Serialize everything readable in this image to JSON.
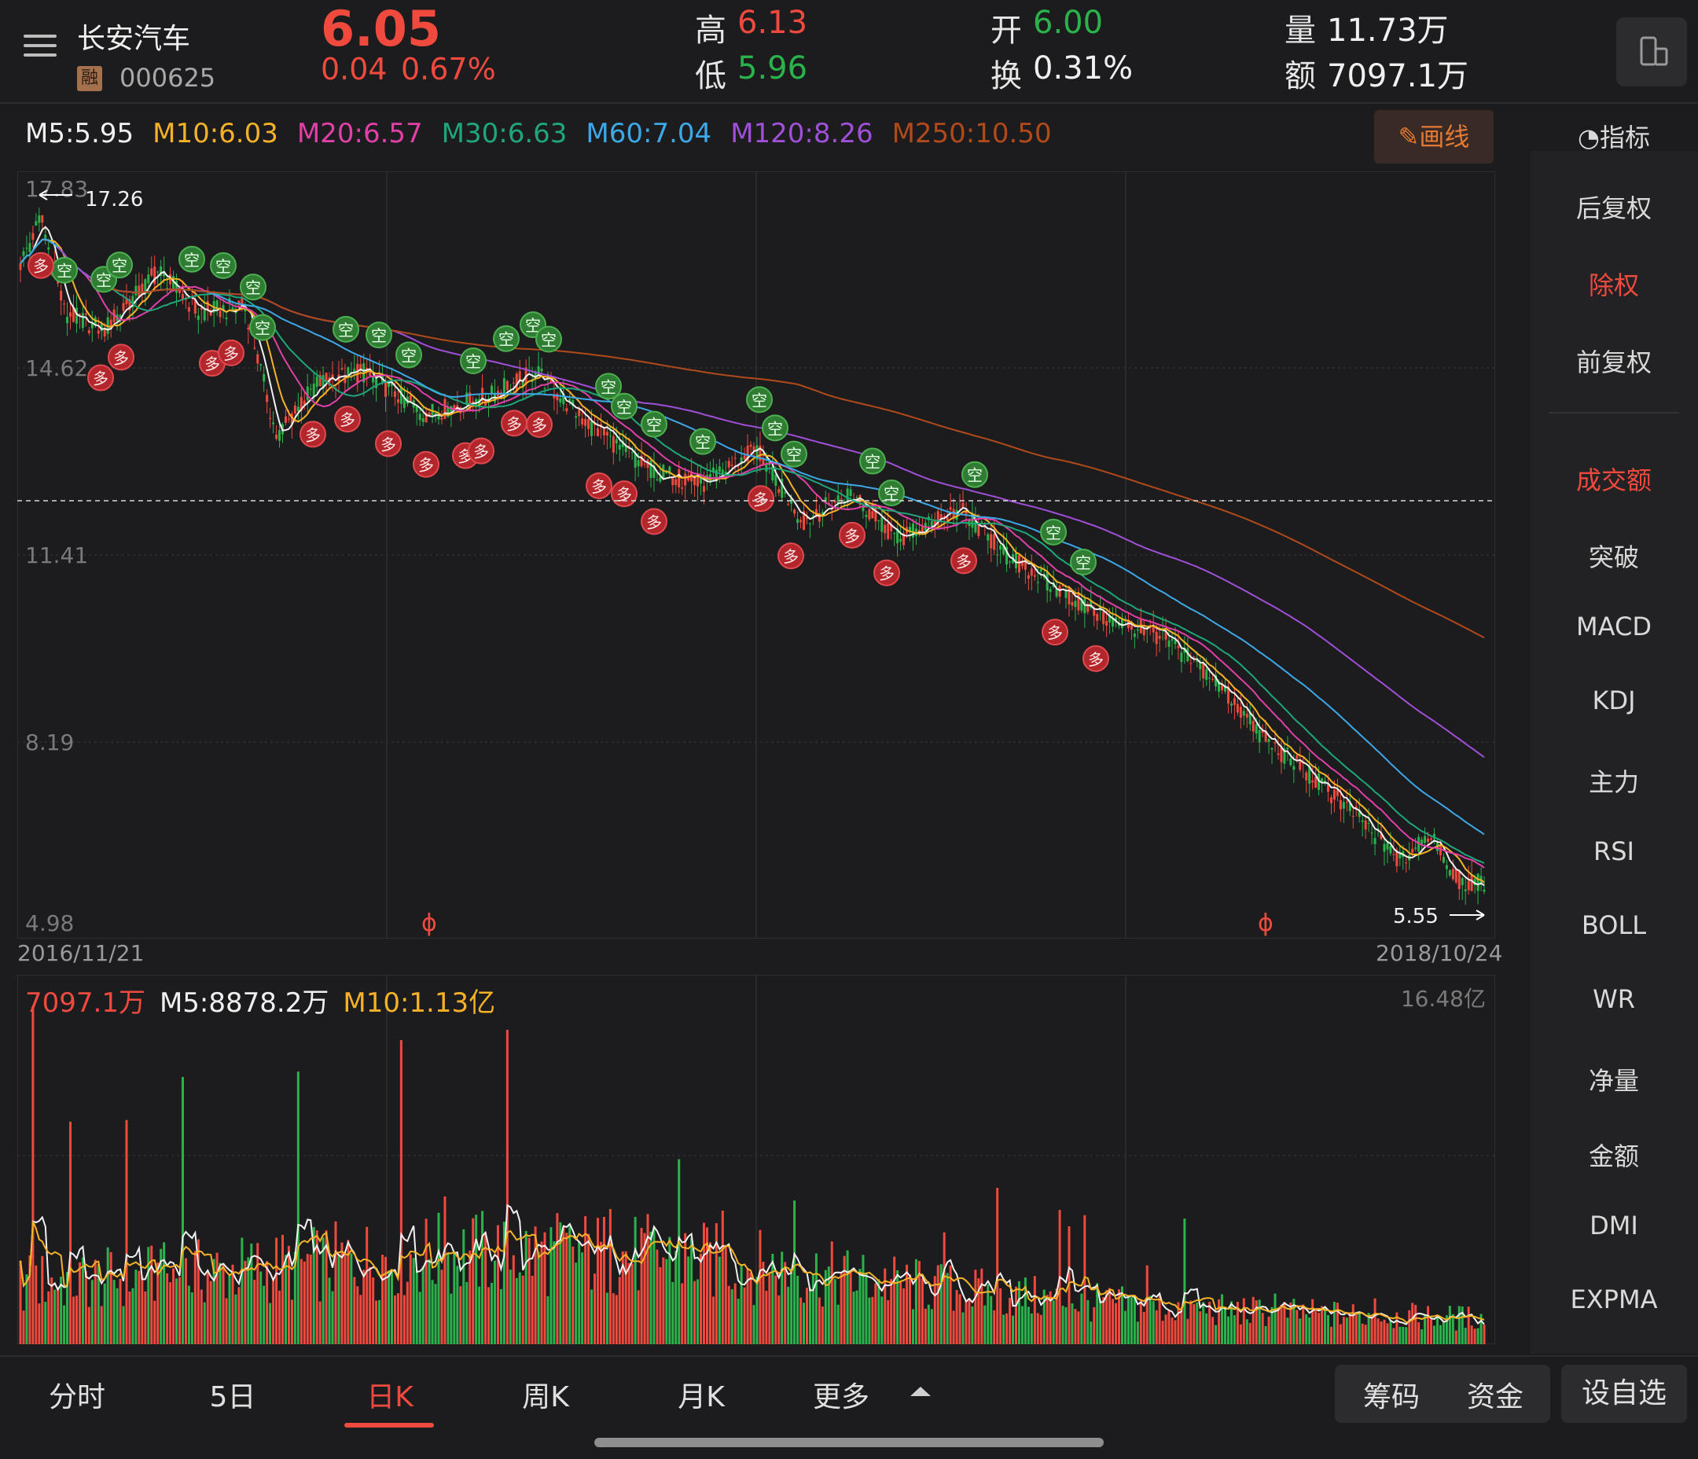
{
  "header": {
    "stock_name": "长安汽车",
    "badge": "融",
    "stock_code": "000625",
    "price": "6.05",
    "change": "0.04",
    "change_pct": "0.67%",
    "high_label": "高",
    "high_value": "6.13",
    "low_label": "低",
    "low_value": "5.96",
    "open_label": "开",
    "open_value": "6.00",
    "turnover_label": "换",
    "turnover_value": "0.31%",
    "volume_label": "量",
    "volume_value": "11.73万",
    "amount_label": "额",
    "amount_value": "7097.1万"
  },
  "ma_legend": [
    {
      "label": "M5:5.95",
      "color": "#f0f0f0"
    },
    {
      "label": "M10:6.03",
      "color": "#f5b227"
    },
    {
      "label": "M20:6.57",
      "color": "#e040a8"
    },
    {
      "label": "M30:6.63",
      "color": "#1fa67a"
    },
    {
      "label": "M60:7.04",
      "color": "#3da8e8"
    },
    {
      "label": "M120:8.26",
      "color": "#a04fd8"
    },
    {
      "label": "M250:10.50",
      "color": "#b14a1a"
    }
  ],
  "draw_button": "画线",
  "kline": {
    "y_ticks": [
      "14.62",
      "11.41",
      "8.19",
      "4.98"
    ],
    "top_tick": "17.83",
    "high_marker": "17.26",
    "low_marker": "5.55",
    "start_date": "2016/11/21",
    "end_date": "2018/10/24",
    "ex_right_mark": "ɸ"
  },
  "volume": {
    "legend_amount": "7097.1万",
    "legend_m5": "M5:8878.2万",
    "legend_m10": "M10:1.13亿",
    "max_label": "16.48亿"
  },
  "right_panel": {
    "indicator_title": "指标",
    "items": [
      "后复权",
      "除权",
      "前复权",
      "成交额",
      "突破",
      "MACD",
      "KDJ",
      "主力",
      "RSI",
      "BOLL",
      "WR",
      "净量",
      "金额",
      "DMI",
      "EXPMA"
    ],
    "active": [
      "除权",
      "成交额"
    ]
  },
  "bottom_tabs": [
    "分时",
    "5日",
    "日K",
    "周K",
    "月K",
    "更多"
  ],
  "active_tab": "日K",
  "bottom_buttons": [
    "筹码",
    "资金",
    "设自选"
  ],
  "signal_labels": {
    "buy": "多",
    "sell": "空"
  },
  "colors": {
    "up": "#f0493e",
    "down": "#2bb34b",
    "bg": "#1c1c1e"
  }
}
